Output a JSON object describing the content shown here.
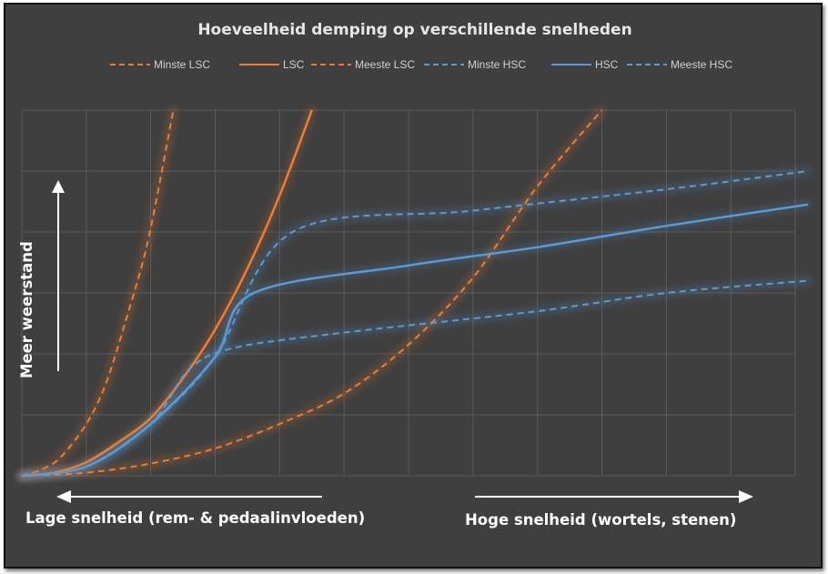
{
  "chart_data": {
    "type": "line",
    "title": "Hoeveelheid demping op verschillende snelheden",
    "ylabel": "Meer weerstand",
    "xlabel_left": "Lage snelheid (rem- & pedaalinvloeden)",
    "xlabel_right": "Hoge snelheid (wortels, stenen)",
    "xlim": [
      0,
      12
    ],
    "ylim": [
      0,
      6
    ],
    "grid": true,
    "legend_position": "top",
    "colors": {
      "lsc": "#ED7D31",
      "hsc": "#5B9BD5",
      "background": "#404040",
      "grid": "#5a5a5a"
    },
    "series": [
      {
        "name": "Minste LSC",
        "color": "#ED7D31",
        "dash": true,
        "x": [
          0,
          1,
          2,
          3,
          4,
          5,
          6,
          7,
          8,
          9
        ],
        "y": [
          0,
          0.05,
          0.2,
          0.45,
          0.85,
          1.35,
          2.15,
          3.25,
          4.75,
          6.0
        ]
      },
      {
        "name": "LSC",
        "color": "#ED7D31",
        "dash": false,
        "x": [
          0,
          0.5,
          1,
          1.5,
          2,
          2.5,
          3,
          3.5,
          4,
          4.5
        ],
        "y": [
          0,
          0.05,
          0.22,
          0.55,
          0.95,
          1.6,
          2.4,
          3.4,
          4.6,
          6.0
        ]
      },
      {
        "name": "Meeste LSC",
        "color": "#ED7D31",
        "dash": true,
        "x": [
          0,
          0.3,
          0.6,
          1.0,
          1.3,
          1.6,
          1.9,
          2.1,
          2.35
        ],
        "y": [
          0,
          0.1,
          0.3,
          0.85,
          1.5,
          2.5,
          3.6,
          4.6,
          6.0
        ]
      },
      {
        "name": "Minste HSC",
        "color": "#5B9BD5",
        "dash": true,
        "x": [
          0,
          1,
          2,
          2.6,
          3.3,
          5,
          8,
          10,
          12.2
        ],
        "y": [
          0,
          0.15,
          0.85,
          1.75,
          2.1,
          2.35,
          2.7,
          3.0,
          3.2
        ]
      },
      {
        "name": "HSC",
        "color": "#5B9BD5",
        "dash": false,
        "x": [
          0,
          1,
          2,
          3,
          3.6,
          6,
          8,
          10,
          12.2
        ],
        "y": [
          0,
          0.15,
          0.85,
          1.95,
          3.0,
          3.45,
          3.75,
          4.1,
          4.45
        ]
      },
      {
        "name": "Meeste HSC",
        "color": "#5B9BD5",
        "dash": true,
        "x": [
          0,
          1,
          2,
          3,
          4.2,
          7,
          10,
          12.2
        ],
        "y": [
          0,
          0.15,
          0.85,
          1.95,
          4.0,
          4.35,
          4.7,
          5.0
        ]
      }
    ]
  }
}
